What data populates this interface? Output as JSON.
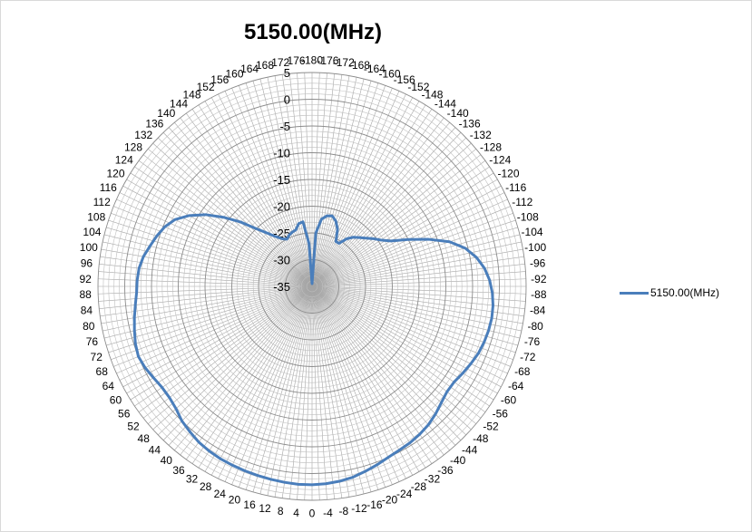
{
  "chart_data": {
    "type": "radar",
    "title": "5150.00(MHz)",
    "angular_ticks": [
      0,
      -4,
      -8,
      -12,
      -16,
      -20,
      -24,
      -28,
      -32,
      -36,
      -40,
      -44,
      -48,
      -52,
      -56,
      -60,
      -64,
      -68,
      -72,
      -76,
      -80,
      -84,
      -88,
      -92,
      -96,
      -100,
      -104,
      -108,
      -112,
      -116,
      -120,
      -124,
      -128,
      -132,
      -136,
      -140,
      -144,
      -148,
      -152,
      -156,
      -160,
      -164,
      -168,
      -172,
      -176,
      -180,
      176,
      172,
      168,
      164,
      160,
      156,
      152,
      148,
      144,
      140,
      136,
      132,
      128,
      124,
      120,
      116,
      112,
      108,
      104,
      100,
      96,
      92,
      88,
      84,
      80,
      76,
      72,
      68,
      64,
      60,
      56,
      52,
      48,
      44,
      40,
      36,
      32,
      28,
      24,
      20,
      16,
      12,
      8,
      4
    ],
    "radial_ticks": [
      5,
      0,
      -5,
      -10,
      -15,
      -20,
      -25,
      -30,
      -35
    ],
    "radial_range": [
      -35,
      5
    ],
    "legend_position": "right",
    "series": [
      {
        "name": "5150.00(MHz)",
        "color": "#4a7ebb",
        "angles": [
          0,
          -4,
          -8,
          -12,
          -16,
          -20,
          -24,
          -28,
          -32,
          -36,
          -40,
          -44,
          -48,
          -52,
          -56,
          -60,
          -64,
          -68,
          -72,
          -76,
          -80,
          -84,
          -88,
          -92,
          -96,
          -100,
          -104,
          -108,
          -112,
          -116,
          -120,
          -124,
          -128,
          -132,
          -136,
          -140,
          -144,
          -148,
          -152,
          -156,
          -160,
          -164,
          -168,
          -172,
          -176,
          -180,
          176,
          172,
          168,
          164,
          160,
          156,
          152,
          148,
          144,
          140,
          136,
          132,
          128,
          124,
          120,
          116,
          112,
          108,
          104,
          100,
          96,
          92,
          88,
          84,
          80,
          76,
          72,
          68,
          64,
          60,
          56,
          52,
          48,
          44,
          40,
          36,
          32,
          28,
          24,
          20,
          16,
          12,
          8,
          4
        ],
        "values": [
          2.1,
          2.0,
          1.8,
          1.5,
          1.0,
          0.5,
          0.0,
          -0.3,
          -0.5,
          -0.8,
          -1.2,
          -1.8,
          -2.5,
          -3.0,
          -3.0,
          -2.5,
          -2.0,
          -1.5,
          -1.2,
          -1.0,
          -0.9,
          -1.0,
          -1.3,
          -1.8,
          -2.6,
          -3.8,
          -5.5,
          -8.0,
          -11.5,
          -15.0,
          -18.0,
          -19.5,
          -20.5,
          -21.5,
          -22.3,
          -23.0,
          -24.0,
          -25.5,
          -25.5,
          -23.3,
          -22.0,
          -21.3,
          -21.5,
          -22.3,
          -25.0,
          -34.5,
          -27.0,
          -22.8,
          -23.0,
          -24.0,
          -24.2,
          -24.5,
          -25.0,
          -24.5,
          -23.5,
          -22.0,
          -20.0,
          -17.0,
          -14.0,
          -11.0,
          -8.5,
          -6.5,
          -5.3,
          -4.5,
          -3.8,
          -3.0,
          -2.5,
          -2.3,
          -2.2,
          -1.8,
          -1.3,
          -0.8,
          -0.3,
          0.0,
          -0.3,
          -0.8,
          -1.2,
          -1.2,
          -0.8,
          0.0,
          0.5,
          1.0,
          1.3,
          1.5,
          1.6,
          1.7,
          1.8,
          1.9,
          2.0,
          2.1
        ]
      }
    ]
  }
}
